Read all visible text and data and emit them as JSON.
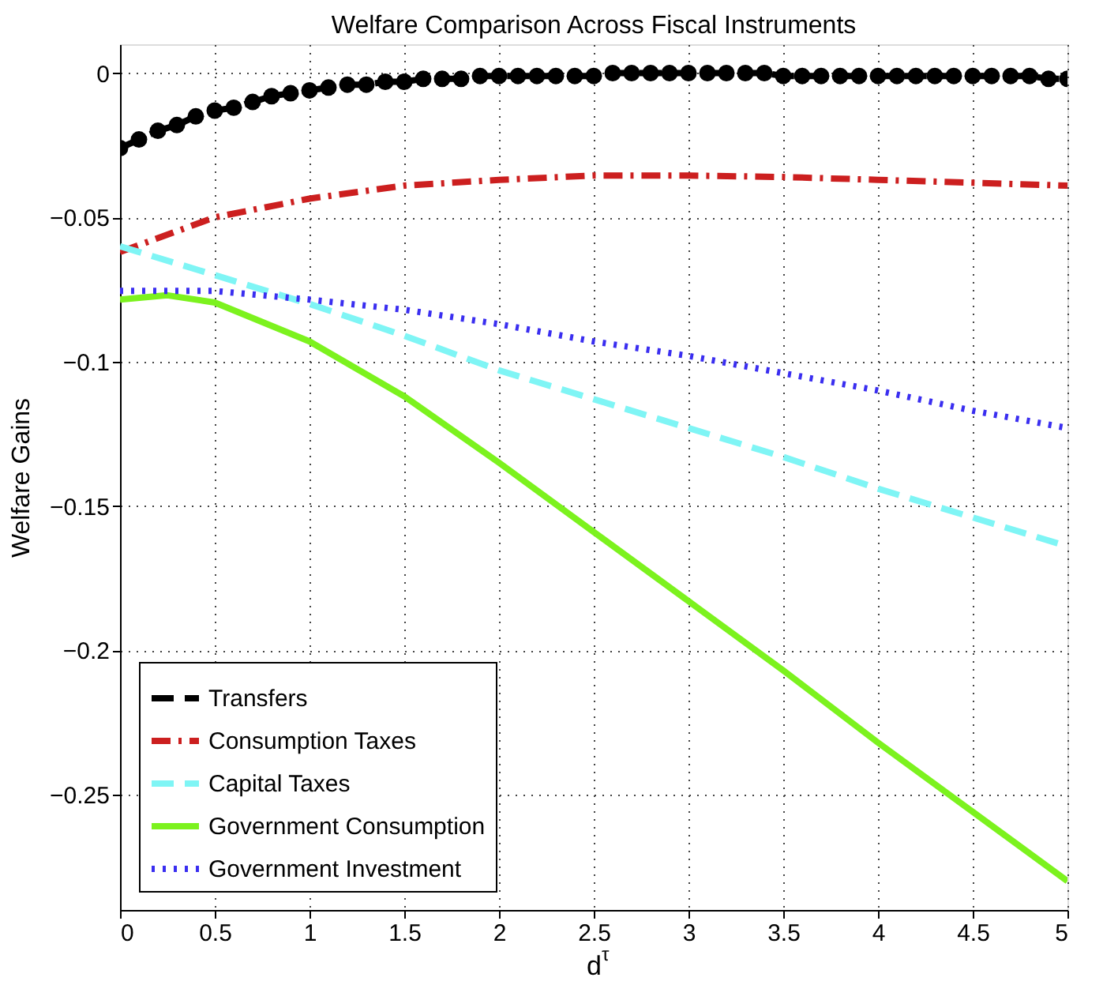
{
  "chart_data": {
    "type": "line",
    "title": "Welfare Comparison Across Fiscal Instruments",
    "xlabel": "d$^{τ}$",
    "ylabel": "Welfare Gains",
    "xlim": [
      0,
      5
    ],
    "xticks": [
      0,
      0.5,
      1,
      1.5,
      2,
      2.5,
      3,
      3.5,
      4,
      4.5,
      5
    ],
    "ylim": [
      -0.29,
      0.01
    ],
    "yticks": [
      0,
      -0.05,
      -0.1,
      -0.15,
      -0.2,
      -0.25
    ],
    "grid": true,
    "legend": "bottom left",
    "series": [
      {
        "name": "Transfers",
        "color": "#000000",
        "line_style": "dashed",
        "marker": "circle",
        "x": [
          0,
          0.1,
          0.2,
          0.3,
          0.4,
          0.5,
          0.6,
          0.7,
          0.8,
          0.9,
          1,
          1.1,
          1.2,
          1.3,
          1.4,
          1.5,
          1.6,
          1.7,
          1.8,
          1.9,
          2,
          2.1,
          2.2,
          2.3,
          2.4,
          2.5,
          2.6,
          2.7,
          2.8,
          2.9,
          3,
          3.1,
          3.2,
          3.3,
          3.4,
          3.5,
          3.6,
          3.7,
          3.8,
          3.9,
          4,
          4.1,
          4.2,
          4.3,
          4.4,
          4.5,
          4.6,
          4.7,
          4.8,
          4.9,
          5
        ],
        "values": [
          -0.026,
          -0.023,
          -0.02,
          -0.018,
          -0.015,
          -0.013,
          -0.012,
          -0.01,
          -0.008,
          -0.007,
          -0.006,
          -0.005,
          -0.004,
          -0.004,
          -0.003,
          -0.003,
          -0.002,
          -0.002,
          -0.002,
          -0.001,
          -0.001,
          -0.001,
          -0.001,
          -0.001,
          -0.001,
          -0.001,
          0,
          0,
          0,
          0,
          0,
          0,
          0,
          0,
          0,
          -0.001,
          -0.001,
          -0.001,
          -0.001,
          -0.001,
          -0.001,
          -0.001,
          -0.001,
          -0.001,
          -0.001,
          -0.001,
          -0.001,
          -0.001,
          -0.001,
          -0.002,
          -0.002
        ]
      },
      {
        "name": "Consumption Taxes",
        "color": "#cc1f1f",
        "line_style": "dashdot",
        "x": [
          0,
          0.5,
          1,
          1.5,
          2,
          2.5,
          3,
          3.5,
          4,
          4.5,
          5
        ],
        "values": [
          -0.062,
          -0.05,
          -0.0435,
          -0.039,
          -0.037,
          -0.0355,
          -0.0355,
          -0.036,
          -0.037,
          -0.038,
          -0.039
        ]
      },
      {
        "name": "Capital Taxes",
        "color": "#7ff5f5",
        "line_style": "dashed",
        "x": [
          0,
          0.5,
          1,
          1.5,
          2,
          2.5,
          3,
          3.5,
          4,
          4.5,
          5
        ],
        "values": [
          -0.06,
          -0.07,
          -0.08,
          -0.091,
          -0.103,
          -0.113,
          -0.123,
          -0.133,
          -0.144,
          -0.154,
          -0.164
        ]
      },
      {
        "name": "Government Consumption",
        "color": "#7cf21e",
        "line_style": "solid",
        "x": [
          0,
          0.25,
          0.5,
          1,
          1.5,
          2,
          2.5,
          3,
          3.5,
          4,
          4.5,
          5
        ],
        "values": [
          -0.0785,
          -0.077,
          -0.0795,
          -0.093,
          -0.112,
          -0.135,
          -0.159,
          -0.183,
          -0.207,
          -0.232,
          -0.256,
          -0.28
        ]
      },
      {
        "name": "Government Investment",
        "color": "#3a2ef0",
        "line_style": "dotted",
        "x": [
          0,
          0.5,
          1,
          1.5,
          2,
          2.5,
          3,
          3.5,
          4,
          4.5,
          5
        ],
        "values": [
          -0.0755,
          -0.0755,
          -0.0785,
          -0.082,
          -0.087,
          -0.093,
          -0.098,
          -0.104,
          -0.11,
          -0.117,
          -0.123
        ]
      }
    ]
  }
}
